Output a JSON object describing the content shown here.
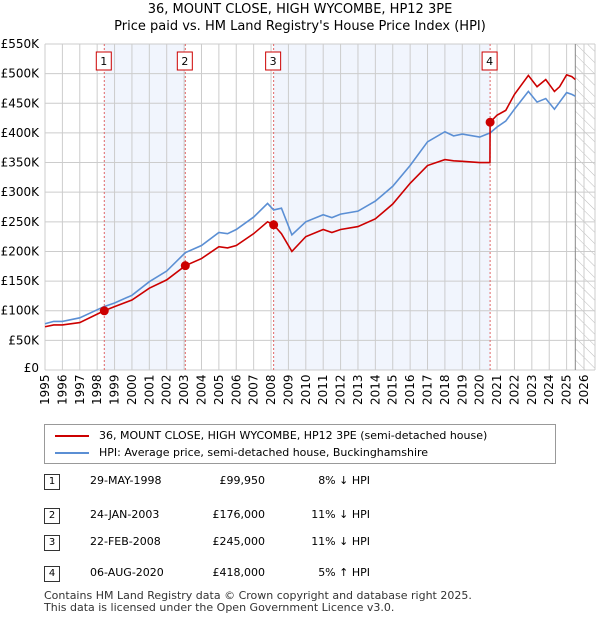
{
  "chart_data": {
    "type": "line",
    "title": "36, MOUNT CLOSE, HIGH WYCOMBE, HP12 3PE",
    "subtitle": "Price paid vs. HM Land Registry's House Price Index (HPI)",
    "xlim": [
      1995,
      2026
    ],
    "ylim": [
      0,
      550000
    ],
    "x_ticks": [
      "1995",
      "1996",
      "1997",
      "1998",
      "1999",
      "2000",
      "2001",
      "2002",
      "2003",
      "2004",
      "2005",
      "2006",
      "2007",
      "2008",
      "2009",
      "2010",
      "2011",
      "2012",
      "2013",
      "2014",
      "2015",
      "2016",
      "2017",
      "2018",
      "2019",
      "2020",
      "2021",
      "2022",
      "2023",
      "2024",
      "2025",
      "2026"
    ],
    "y_ticks": [
      {
        "v": 0,
        "l": "£0"
      },
      {
        "v": 50000,
        "l": "£50K"
      },
      {
        "v": 100000,
        "l": "£100K"
      },
      {
        "v": 150000,
        "l": "£150K"
      },
      {
        "v": 200000,
        "l": "£200K"
      },
      {
        "v": 250000,
        "l": "£250K"
      },
      {
        "v": 300000,
        "l": "£300K"
      },
      {
        "v": 350000,
        "l": "£350K"
      },
      {
        "v": 400000,
        "l": "£400K"
      },
      {
        "v": 450000,
        "l": "£450K"
      },
      {
        "v": 500000,
        "l": "£500K"
      },
      {
        "v": 550000,
        "l": "£550K"
      }
    ],
    "grid": true,
    "series": [
      {
        "name": "36, MOUNT CLOSE, HIGH WYCOMBE, HP12 3PE (semi-detached house)",
        "color": "#cc0000",
        "x": [
          1995,
          1995.5,
          1996,
          1997,
          1998.4,
          1999,
          2000,
          2001,
          2002,
          2003.07,
          2004,
          2005,
          2005.5,
          2006,
          2007,
          2007.8,
          2008.15,
          2008.6,
          2009.2,
          2010,
          2011,
          2011.5,
          2012,
          2013,
          2014,
          2015,
          2016,
          2017,
          2018,
          2018.5,
          2019,
          2020,
          2020.59,
          2020.6,
          2021,
          2021.5,
          2022,
          2022.8,
          2023.3,
          2023.8,
          2024.3,
          2024.6,
          2025,
          2025.3,
          2025.5
        ],
        "y": [
          73000,
          76000,
          76000,
          80000,
          99950,
          107000,
          118000,
          138000,
          152000,
          176000,
          188000,
          208000,
          206000,
          210000,
          230000,
          250000,
          245000,
          230000,
          200000,
          225000,
          237000,
          232000,
          237000,
          242000,
          255000,
          280000,
          315000,
          345000,
          355000,
          353000,
          352000,
          350000,
          350000,
          418000,
          430000,
          438000,
          465000,
          497000,
          478000,
          490000,
          470000,
          478000,
          498000,
          495000,
          490000
        ]
      },
      {
        "name": "HPI: Average price, semi-detached house, Buckinghamshire",
        "color": "#5b8fd4",
        "x": [
          1995,
          1995.5,
          1996,
          1997,
          1998.4,
          1999,
          2000,
          2001,
          2002,
          2003.07,
          2004,
          2005,
          2005.5,
          2006,
          2007,
          2007.8,
          2008.15,
          2008.6,
          2009.2,
          2010,
          2011,
          2011.5,
          2012,
          2013,
          2014,
          2015,
          2016,
          2017,
          2018,
          2018.5,
          2019,
          2020,
          2020.6,
          2021,
          2021.5,
          2022,
          2022.8,
          2023.3,
          2023.8,
          2024.3,
          2024.6,
          2025,
          2025.3,
          2025.5
        ],
        "y": [
          78000,
          82000,
          82000,
          88000,
          107000,
          113000,
          126000,
          149000,
          167000,
          198000,
          210000,
          232000,
          230000,
          237000,
          258000,
          281000,
          270000,
          273000,
          228000,
          250000,
          262000,
          257000,
          263000,
          268000,
          285000,
          310000,
          345000,
          385000,
          402000,
          395000,
          398000,
          393000,
          400000,
          410000,
          420000,
          440000,
          470000,
          452000,
          458000,
          440000,
          452000,
          468000,
          465000,
          462000
        ]
      }
    ],
    "sales": [
      {
        "n": "1",
        "x": 1998.41,
        "price": 99950
      },
      {
        "n": "2",
        "x": 2003.07,
        "price": 176000
      },
      {
        "n": "3",
        "x": 2008.15,
        "price": 245000
      },
      {
        "n": "4",
        "x": 2020.6,
        "price": 418000
      }
    ]
  },
  "legend": [
    {
      "label": "36, MOUNT CLOSE, HIGH WYCOMBE, HP12 3PE (semi-detached house)",
      "color": "#cc0000"
    },
    {
      "label": "HPI: Average price, semi-detached house, Buckinghamshire",
      "color": "#5b8fd4"
    }
  ],
  "table": [
    {
      "n": "1",
      "date": "29-MAY-1998",
      "price": "£99,950",
      "pct": "8% ↓ HPI"
    },
    {
      "n": "2",
      "date": "24-JAN-2003",
      "price": "£176,000",
      "pct": "11% ↓ HPI"
    },
    {
      "n": "3",
      "date": "22-FEB-2008",
      "price": "£245,000",
      "pct": "11% ↓ HPI"
    },
    {
      "n": "4",
      "date": "06-AUG-2020",
      "price": "£418,000",
      "pct": "5% ↑ HPI"
    }
  ],
  "footer": [
    "Contains HM Land Registry data © Crown copyright and database right 2025.",
    "This data is licensed under the Open Government Licence v3.0."
  ]
}
